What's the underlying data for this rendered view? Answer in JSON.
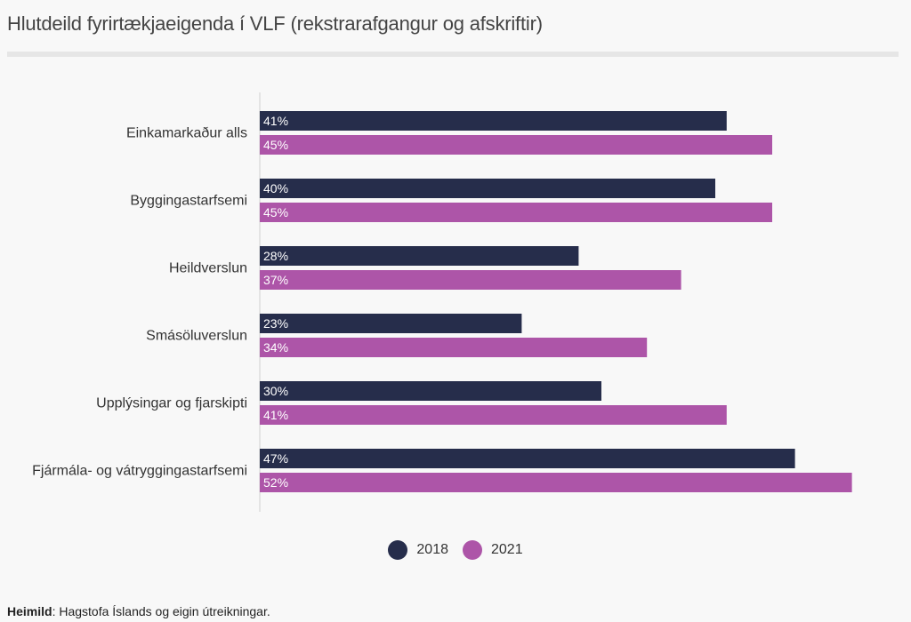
{
  "chart_data": {
    "type": "bar",
    "orientation": "horizontal",
    "title": "Hlutdeild fyrirtækjaeigenda í VLF (rekstrarafgangur og afskriftir)",
    "categories": [
      "Einkamarkaður alls",
      "Byggingastarfsemi",
      "Heildverslun",
      "Smásöluverslun",
      "Upplýsingar og fjarskipti",
      "Fjármála- og vátryggingastarfsemi"
    ],
    "series": [
      {
        "name": "2018",
        "color": "#262d4b",
        "values": [
          41,
          40,
          28,
          23,
          30,
          47
        ],
        "labels": [
          "41%",
          "40%",
          "28%",
          "23%",
          "30%",
          "47%"
        ]
      },
      {
        "name": "2021",
        "color": "#ad55a8",
        "values": [
          45,
          45,
          37,
          34,
          41,
          52
        ],
        "labels": [
          "45%",
          "45%",
          "37%",
          "34%",
          "41%",
          "52%"
        ]
      }
    ],
    "xlim": [
      0,
      52
    ],
    "unit": "%",
    "legend": "bottom-center",
    "grid": false
  },
  "source": {
    "label": "Heimild",
    "text": ": Hagstofa Íslands og eigin útreikningar."
  }
}
